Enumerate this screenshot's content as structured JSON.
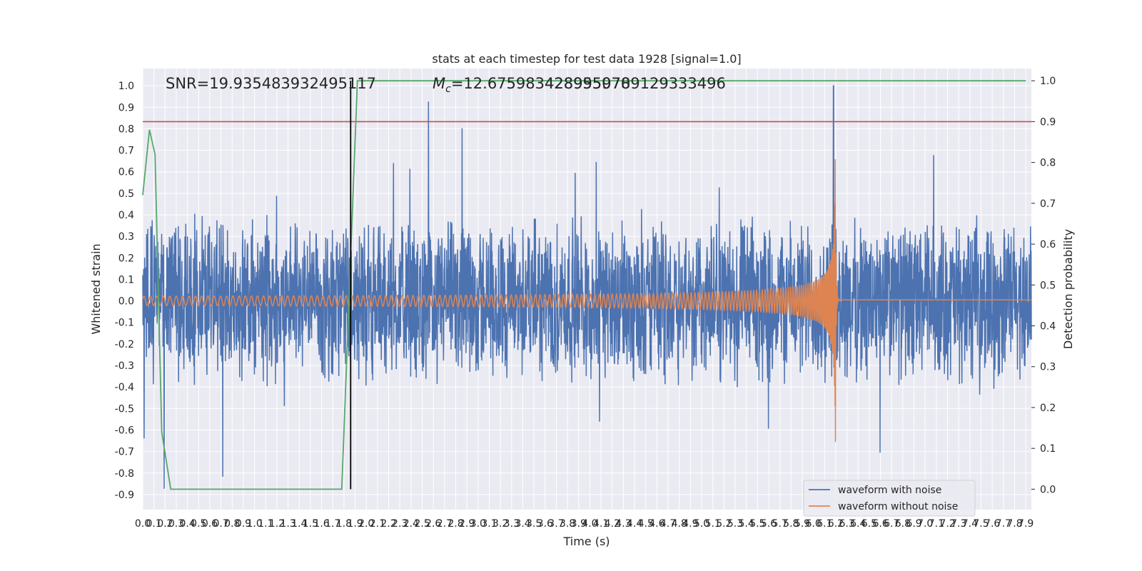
{
  "chart_data": {
    "type": "line",
    "title": "stats at each timestep for test data 1928 [signal=1.0]",
    "xlabel": "Time (s)",
    "ylabel": "Whitened strain",
    "ylabel_right": "Detection probability",
    "xlim": [
      0.0,
      7.95
    ],
    "ylim": [
      -0.97,
      1.08
    ],
    "ylim_right": [
      -0.05,
      1.03
    ],
    "x_ticks": [
      "0.0",
      "0.1",
      "0.2",
      "0.3",
      "0.4",
      "0.5",
      "0.6",
      "0.7",
      "0.8",
      "0.9",
      "1.0",
      "1.1",
      "1.2",
      "1.3",
      "1.4",
      "1.5",
      "1.6",
      "1.7",
      "1.8",
      "1.9",
      "2.0",
      "2.1",
      "2.2",
      "2.3",
      "2.4",
      "2.5",
      "2.6",
      "2.7",
      "2.8",
      "2.9",
      "3.0",
      "3.1",
      "3.2",
      "3.3",
      "3.4",
      "3.5",
      "3.6",
      "3.7",
      "3.8",
      "3.9",
      "4.0",
      "4.1",
      "4.2",
      "4.3",
      "4.4",
      "4.5",
      "4.6",
      "4.7",
      "4.8",
      "4.9",
      "5.0",
      "5.1",
      "5.2",
      "5.3",
      "5.4",
      "5.5",
      "5.6",
      "5.7",
      "5.8",
      "5.9",
      "6.0",
      "6.1",
      "6.2",
      "6.3",
      "6.4",
      "6.5",
      "6.6",
      "6.7",
      "6.8",
      "6.9",
      "7.0",
      "7.1",
      "7.2",
      "7.3",
      "7.4",
      "7.5",
      "7.6",
      "7.7",
      "7.8",
      "7.9"
    ],
    "y_ticks": [
      "-0.9",
      "-0.8",
      "-0.7",
      "-0.6",
      "-0.5",
      "-0.4",
      "-0.3",
      "-0.2",
      "-0.1",
      "0.0",
      "0.1",
      "0.2",
      "0.3",
      "0.4",
      "0.5",
      "0.6",
      "0.7",
      "0.8",
      "0.9",
      "1.0"
    ],
    "y_ticks_right": [
      "0.0",
      "0.1",
      "0.2",
      "0.3",
      "0.4",
      "0.5",
      "0.6",
      "0.7",
      "0.8",
      "0.9",
      "1.0"
    ],
    "annotations": {
      "snr": "SNR=19.935483932495117",
      "mc_symbol": "M",
      "mc_sub": "c",
      "mc_value": "=12.675983428955078",
      "mc_overlap": "4289959709129333496"
    },
    "series": [
      {
        "name": "waveform with noise",
        "color": "#4c72b0",
        "kind": "noise",
        "amplitude": 0.32,
        "peak_value": 1.0,
        "peak_time": 6.18
      },
      {
        "name": "waveform without noise",
        "color": "#dd8452",
        "kind": "chirp",
        "merger_time": 6.2,
        "max_amplitude": 0.66
      },
      {
        "name": "detection probability",
        "color": "#55a868",
        "axis": "right",
        "x": [
          0.0,
          0.06,
          0.11,
          0.17,
          0.25,
          1.78,
          1.92,
          7.9
        ],
        "y": [
          0.72,
          0.88,
          0.82,
          0.14,
          0.0,
          0.0,
          1.0,
          1.0
        ]
      }
    ],
    "threshold": {
      "value": 0.9,
      "axis": "right",
      "color": "#c44e52"
    },
    "detection_marker": {
      "x": 1.86,
      "color": "#000000"
    },
    "legend_placement": "lower-right",
    "grid": true
  }
}
